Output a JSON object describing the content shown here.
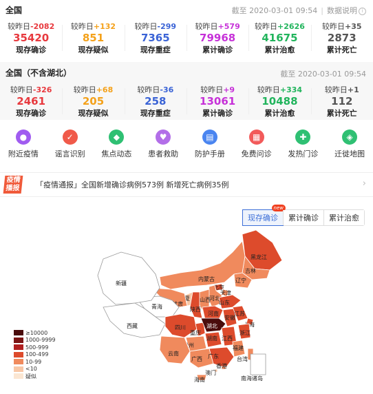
{
  "nation": {
    "title": "全国",
    "updated": "截至 2020-03-01 09:54",
    "explain": "数据说明",
    "stats": [
      {
        "delta_label": "较昨日",
        "delta": "-2082",
        "value": "35420",
        "label": "现存确诊",
        "color": "#e8393e"
      },
      {
        "delta_label": "较昨日",
        "delta": "+132",
        "value": "851",
        "label": "现存疑似",
        "color": "#f4a11a"
      },
      {
        "delta_label": "较昨日",
        "delta": "-299",
        "value": "7365",
        "label": "现存重症",
        "color": "#3a63d6"
      },
      {
        "delta_label": "较昨日",
        "delta": "+579",
        "value": "79968",
        "label": "累计确诊",
        "color": "#c631d8"
      },
      {
        "delta_label": "较昨日",
        "delta": "+2626",
        "value": "41675",
        "label": "累计治愈",
        "color": "#21b45c"
      },
      {
        "delta_label": "较昨日",
        "delta": "+35",
        "value": "2873",
        "label": "累计死亡",
        "color": "#555555"
      }
    ]
  },
  "outside_hubei": {
    "title": "全国（不含湖北）",
    "updated": "截至 2020-03-01 09:54",
    "stats": [
      {
        "delta_label": "较昨日",
        "delta": "-326",
        "value": "2461",
        "label": "现存确诊",
        "color": "#e8393e"
      },
      {
        "delta_label": "较昨日",
        "delta": "+68",
        "value": "205",
        "label": "现存疑似",
        "color": "#f4a11a"
      },
      {
        "delta_label": "较昨日",
        "delta": "-36",
        "value": "258",
        "label": "现存重症",
        "color": "#3a63d6"
      },
      {
        "delta_label": "较昨日",
        "delta": "+9",
        "value": "13061",
        "label": "累计确诊",
        "color": "#c631d8"
      },
      {
        "delta_label": "较昨日",
        "delta": "+334",
        "value": "10488",
        "label": "累计治愈",
        "color": "#21b45c"
      },
      {
        "delta_label": "较昨日",
        "delta": "+1",
        "value": "112",
        "label": "累计死亡",
        "color": "#555555"
      }
    ]
  },
  "services": [
    {
      "label": "附近疫情",
      "icon": "location-pin-icon",
      "glyph": "●",
      "color": "#a05cf0"
    },
    {
      "label": "谣言识别",
      "icon": "rumor-check-icon",
      "glyph": "✓",
      "color": "#f05a4a"
    },
    {
      "label": "焦点动态",
      "icon": "focus-news-icon",
      "glyph": "◆",
      "color": "#2fc073"
    },
    {
      "label": "患者救助",
      "icon": "heart-icon",
      "glyph": "♥",
      "color": "#b26ee8"
    },
    {
      "label": "防护手册",
      "icon": "handbook-icon",
      "glyph": "▤",
      "color": "#4a85f0"
    },
    {
      "label": "免费问诊",
      "icon": "calendar-icon",
      "glyph": "▦",
      "color": "#f25a5a"
    },
    {
      "label": "发热门诊",
      "icon": "clinic-icon",
      "glyph": "✚",
      "color": "#2fc073"
    },
    {
      "label": "迁徙地图",
      "icon": "migration-map-icon",
      "glyph": "◈",
      "color": "#2fc073"
    }
  ],
  "news": {
    "tag_line1": "疫情",
    "tag_line2": "播报",
    "text": "「疫情通报」全国新增确诊病例573例 新增死亡病例35例",
    "chevron": "›"
  },
  "map_tabs": {
    "active": "现存确诊",
    "badge": "new",
    "tab2": "累计确诊",
    "tab3": "累计治愈"
  },
  "legend": [
    {
      "label": "≥10000",
      "color": "#4a0c0c"
    },
    {
      "label": "1000-9999",
      "color": "#7b1515"
    },
    {
      "label": "500-999",
      "color": "#b02020"
    },
    {
      "label": "100-499",
      "color": "#dd4b2c"
    },
    {
      "label": "10-99",
      "color": "#f08a5d"
    },
    {
      "label": "<10",
      "color": "#f8c7a6"
    },
    {
      "label": "疑似",
      "color": "#fbe6d2"
    }
  ],
  "provinces": [
    {
      "name": "黑龙江",
      "level": 4
    },
    {
      "name": "吉林",
      "level": 5
    },
    {
      "name": "辽宁",
      "level": 5
    },
    {
      "name": "内蒙古",
      "level": 5
    },
    {
      "name": "北京",
      "level": 4
    },
    {
      "name": "天津",
      "level": 5
    },
    {
      "name": "河北",
      "level": 5
    },
    {
      "name": "山西",
      "level": 5
    },
    {
      "name": "山东",
      "level": 4
    },
    {
      "name": "宁夏",
      "level": 6
    },
    {
      "name": "甘肃",
      "level": 5
    },
    {
      "name": "陕西",
      "level": 4
    },
    {
      "name": "河南",
      "level": 4
    },
    {
      "name": "青海",
      "level": 7
    },
    {
      "name": "新疆",
      "level": 7
    },
    {
      "name": "西藏",
      "level": 7
    },
    {
      "name": "四川",
      "level": 4
    },
    {
      "name": "重庆",
      "level": 4
    },
    {
      "name": "湖北",
      "level": 1
    },
    {
      "name": "安徽",
      "level": 4
    },
    {
      "name": "江苏",
      "level": 4
    },
    {
      "name": "上海",
      "level": 4
    },
    {
      "name": "浙江",
      "level": 4
    },
    {
      "name": "湖南",
      "level": 4
    },
    {
      "name": "江西",
      "level": 4
    },
    {
      "name": "贵州",
      "level": 5
    },
    {
      "name": "云南",
      "level": 5
    },
    {
      "name": "广西",
      "level": 5
    },
    {
      "name": "广东",
      "level": 4
    },
    {
      "name": "福建",
      "level": 5
    },
    {
      "name": "台湾",
      "level": 5
    },
    {
      "name": "香港",
      "level": 5
    },
    {
      "name": "澳门",
      "level": 6
    },
    {
      "name": "海南",
      "level": 5
    },
    {
      "name": "南海诸岛",
      "level": 7
    }
  ]
}
